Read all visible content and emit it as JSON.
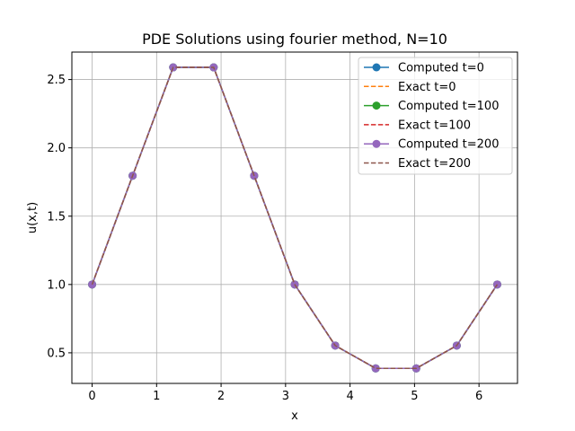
{
  "chart_data": {
    "type": "line",
    "title": "PDE Solutions using fourier method, N=10",
    "xlabel": "x",
    "ylabel": "u(x,t)",
    "xlim": [
      -0.314,
      6.597
    ],
    "ylim": [
      0.276,
      2.701
    ],
    "xticks": [
      0,
      1,
      2,
      3,
      4,
      5,
      6
    ],
    "xtick_labels": [
      "0",
      "1",
      "2",
      "3",
      "4",
      "5",
      "6"
    ],
    "yticks": [
      0.5,
      1.0,
      1.5,
      2.0,
      2.5
    ],
    "ytick_labels": [
      "0.5",
      "1.0",
      "1.5",
      "2.0",
      "2.5"
    ],
    "grid": true,
    "legend_position": "top-right",
    "x": [
      0,
      0.628,
      1.257,
      1.885,
      2.513,
      3.142,
      3.77,
      4.398,
      5.027,
      5.655,
      6.283
    ],
    "series": [
      {
        "name": "Computed t=0",
        "color": "#1f77b4",
        "style": "solid-marker",
        "values": [
          1.0,
          1.796,
          2.589,
          2.589,
          1.796,
          1.0,
          0.553,
          0.386,
          0.386,
          0.553,
          1.0
        ]
      },
      {
        "name": "Exact t=0",
        "color": "#ff7f0e",
        "style": "dashed",
        "values": [
          1.0,
          1.796,
          2.589,
          2.589,
          1.796,
          1.0,
          0.553,
          0.386,
          0.386,
          0.553,
          1.0
        ]
      },
      {
        "name": "Computed t=100",
        "color": "#2ca02c",
        "style": "solid-marker",
        "values": [
          1.0,
          1.796,
          2.589,
          2.589,
          1.796,
          1.0,
          0.553,
          0.386,
          0.386,
          0.553,
          1.0
        ]
      },
      {
        "name": "Exact t=100",
        "color": "#d62728",
        "style": "dashed",
        "values": [
          1.0,
          1.796,
          2.589,
          2.589,
          1.796,
          1.0,
          0.553,
          0.386,
          0.386,
          0.553,
          1.0
        ]
      },
      {
        "name": "Computed t=200",
        "color": "#9467bd",
        "style": "solid-marker",
        "values": [
          1.0,
          1.796,
          2.589,
          2.589,
          1.796,
          1.0,
          0.553,
          0.386,
          0.386,
          0.553,
          1.0
        ]
      },
      {
        "name": "Exact t=200",
        "color": "#8c564b",
        "style": "dashed",
        "values": [
          1.0,
          1.796,
          2.589,
          2.589,
          1.796,
          1.0,
          0.553,
          0.386,
          0.386,
          0.553,
          1.0
        ]
      }
    ]
  }
}
